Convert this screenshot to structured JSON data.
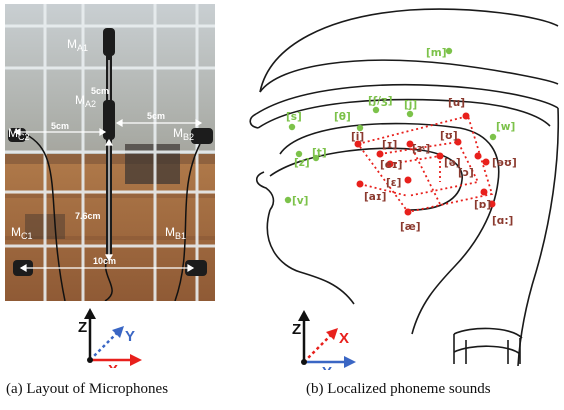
{
  "panel_a": {
    "caption": "(a) Layout of Microphones",
    "mics": [
      {
        "base": "M",
        "sub": "A1"
      },
      {
        "base": "M",
        "sub": "A2"
      },
      {
        "base": "M",
        "sub": "C2"
      },
      {
        "base": "M",
        "sub": "B2"
      },
      {
        "base": "M",
        "sub": "C1"
      },
      {
        "base": "M",
        "sub": "B1"
      }
    ],
    "dimensions": {
      "a1_a2": "5cm",
      "c2_a2": "5cm",
      "a2_b2": "5cm",
      "vertical": "7.6cm",
      "bottom": "10cm"
    },
    "axes": {
      "z": "Z",
      "y": "Y",
      "x": "X"
    }
  },
  "panel_b": {
    "caption": "(b) Localized phoneme sounds",
    "green_phonemes": [
      "[m]",
      "[s]",
      "[θ]",
      "[ʃ/ʒ]",
      "[j]",
      "[w]",
      "[z]",
      "[t]",
      "[v]"
    ],
    "brown_phonemes": [
      "[u]",
      "[i]",
      "[ɪ]",
      "[ɝ]",
      "[ʊ]",
      "[eɪ]",
      "[ə]",
      "[ɔ]",
      "[əʊ]",
      "[ɛ]",
      "[aɪ]",
      "[ɒ]",
      "[æ]",
      "[ɑ:]"
    ],
    "axes": {
      "z": "Z",
      "x": "X",
      "y": "Y"
    }
  },
  "colors": {
    "green": "#7cc24a",
    "brown": "#8b3a2f",
    "red": "#e8201c",
    "blue": "#3a66c4"
  }
}
